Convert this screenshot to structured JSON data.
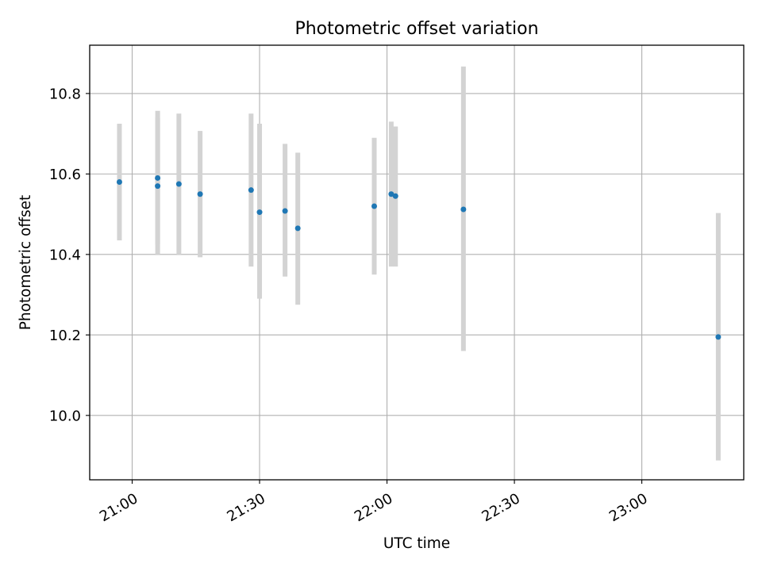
{
  "chart_data": {
    "type": "scatter",
    "title": "Photometric offset variation",
    "xlabel": "UTC time",
    "ylabel": "Photometric offset",
    "xlim": [
      "20:50",
      "23:24"
    ],
    "ylim": [
      9.84,
      10.92
    ],
    "xticks": [
      "21:00",
      "21:30",
      "22:00",
      "22:30",
      "23:00"
    ],
    "yticks": [
      "10.0",
      "10.2",
      "10.4",
      "10.6",
      "10.8"
    ],
    "grid": true,
    "legend": "none",
    "colors": {
      "point": "#1f77b4",
      "errorbar": "#d3d3d3",
      "grid": "#b0b0b0"
    },
    "series": [
      {
        "points": [
          {
            "x": "20:57",
            "y": 10.58,
            "ylow": 10.435,
            "yhigh": 10.725
          },
          {
            "x": "21:06",
            "y": 10.57,
            "ylow": 10.4,
            "yhigh": 10.74
          },
          {
            "x": "21:06",
            "y": 10.59,
            "ylow": 10.425,
            "yhigh": 10.757
          },
          {
            "x": "21:11",
            "y": 10.575,
            "ylow": 10.4,
            "yhigh": 10.75
          },
          {
            "x": "21:16",
            "y": 10.55,
            "ylow": 10.393,
            "yhigh": 10.707
          },
          {
            "x": "21:28",
            "y": 10.56,
            "ylow": 10.37,
            "yhigh": 10.75
          },
          {
            "x": "21:30",
            "y": 10.505,
            "ylow": 10.29,
            "yhigh": 10.725
          },
          {
            "x": "21:36",
            "y": 10.508,
            "ylow": 10.345,
            "yhigh": 10.675
          },
          {
            "x": "21:39",
            "y": 10.465,
            "ylow": 10.275,
            "yhigh": 10.653
          },
          {
            "x": "21:57",
            "y": 10.52,
            "ylow": 10.35,
            "yhigh": 10.69
          },
          {
            "x": "22:01",
            "y": 10.55,
            "ylow": 10.37,
            "yhigh": 10.73
          },
          {
            "x": "22:02",
            "y": 10.545,
            "ylow": 10.37,
            "yhigh": 10.718
          },
          {
            "x": "22:18",
            "y": 10.512,
            "ylow": 10.16,
            "yhigh": 10.867
          },
          {
            "x": "23:18",
            "y": 10.195,
            "ylow": 9.888,
            "yhigh": 10.503
          }
        ]
      }
    ]
  }
}
